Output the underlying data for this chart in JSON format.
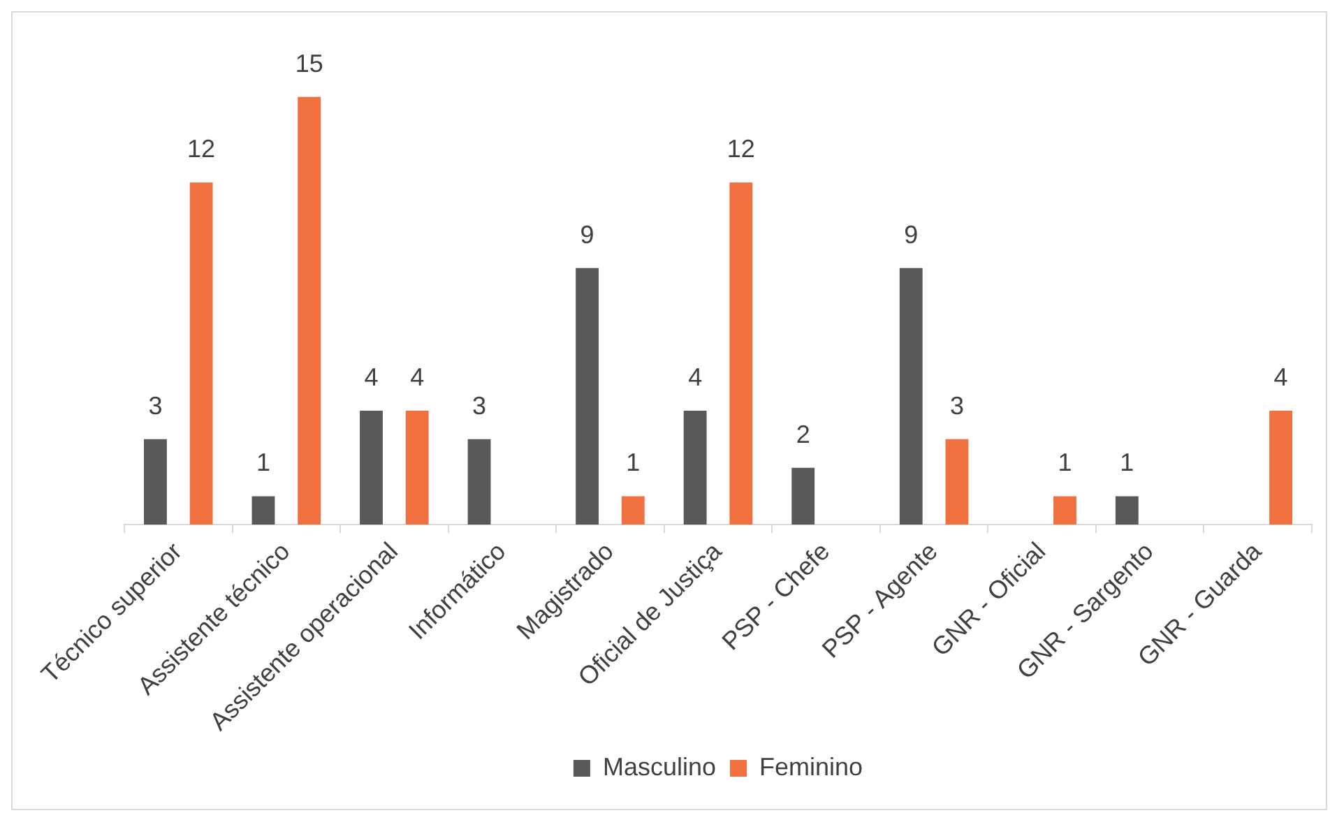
{
  "chart_data": {
    "type": "bar",
    "categories": [
      "Técnico superior",
      "Assistente técnico",
      "Assistente operacional",
      "Informático",
      "Magistrado",
      "Oficial de Justiça",
      "PSP - Chefe",
      "PSP - Agente",
      "GNR - Oficial",
      "GNR - Sargento",
      "GNR - Guarda"
    ],
    "series": [
      {
        "name": "Masculino",
        "color": "#595959",
        "values": [
          3,
          1,
          4,
          3,
          9,
          4,
          2,
          9,
          null,
          1,
          null
        ]
      },
      {
        "name": "Feminino",
        "color": "#f07040",
        "values": [
          12,
          15,
          4,
          null,
          1,
          12,
          null,
          3,
          1,
          null,
          4
        ]
      }
    ],
    "data_labels": true,
    "grid": false,
    "legend": "bottom"
  }
}
